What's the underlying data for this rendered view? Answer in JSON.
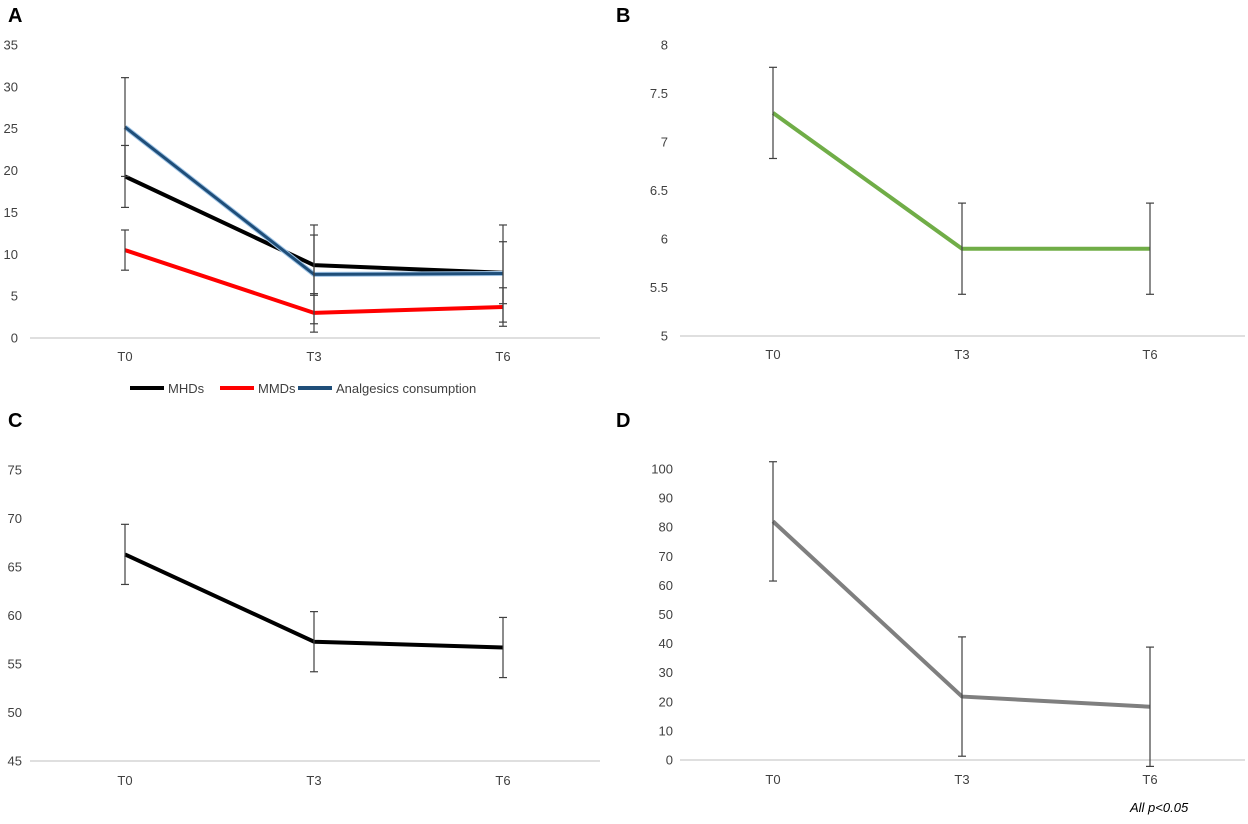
{
  "footnote": "All p<0.05",
  "colors": {
    "axis": "#bfbfbf",
    "tick_text": "#404040",
    "error_bar": "#404040"
  },
  "chart_data": [
    {
      "panel": "A",
      "type": "line",
      "categories": [
        "T0",
        "T3",
        "T6"
      ],
      "ylim": [
        0,
        35
      ],
      "yticks": [
        0,
        5,
        10,
        15,
        20,
        25,
        30,
        35
      ],
      "legend": "bottom",
      "series": [
        {
          "name": "MHDs",
          "color": "#000000",
          "values": [
            19.3,
            8.7,
            7.8
          ],
          "errors": [
            3.7,
            3.6,
            3.7
          ]
        },
        {
          "name": "MMDs",
          "color": "#ff0000",
          "values": [
            10.5,
            3.0,
            3.7
          ],
          "errors": [
            2.4,
            2.3,
            2.3
          ]
        },
        {
          "name": "Analgesics consumption",
          "color": "#1f4e79",
          "values": [
            25.2,
            7.6,
            7.7
          ],
          "errors": [
            5.9,
            5.9,
            5.8
          ]
        }
      ]
    },
    {
      "panel": "B",
      "type": "line",
      "categories": [
        "T0",
        "T3",
        "T6"
      ],
      "ylim": [
        5,
        8
      ],
      "yticks": [
        5,
        5.5,
        6,
        6.5,
        7,
        7.5,
        8
      ],
      "series": [
        {
          "name": "B",
          "color": "#70ad47",
          "values": [
            7.3,
            5.9,
            5.9
          ],
          "errors": [
            0.47,
            0.47,
            0.47
          ]
        }
      ]
    },
    {
      "panel": "C",
      "type": "line",
      "categories": [
        "T0",
        "T3",
        "T6"
      ],
      "ylim": [
        45,
        75
      ],
      "yticks": [
        45,
        50,
        55,
        60,
        65,
        70,
        75
      ],
      "series": [
        {
          "name": "C",
          "color": "#000000",
          "values": [
            66.3,
            57.3,
            56.7
          ],
          "errors": [
            3.1,
            3.1,
            3.1
          ]
        }
      ]
    },
    {
      "panel": "D",
      "type": "line",
      "categories": [
        "T0",
        "T3",
        "T6"
      ],
      "ylim": [
        0,
        100
      ],
      "yticks": [
        0,
        10,
        20,
        30,
        40,
        50,
        60,
        70,
        80,
        90,
        100
      ],
      "series": [
        {
          "name": "D",
          "color": "#7f7f7f",
          "values": [
            82,
            21.8,
            18.3
          ],
          "errors": [
            20.5,
            20.5,
            20.5
          ]
        }
      ]
    }
  ]
}
